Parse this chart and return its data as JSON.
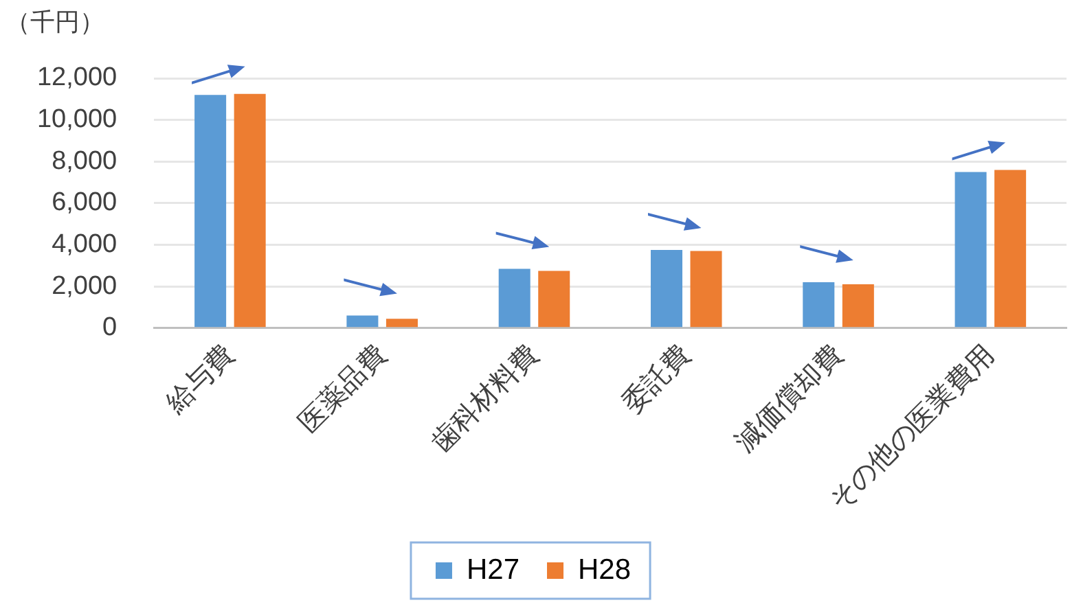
{
  "chart_data": {
    "type": "bar",
    "ylabel": "（千円）",
    "categories": [
      "給与費",
      "医薬品費",
      "歯科材料費",
      "委託費",
      "減価償却費",
      "その他の医業費用"
    ],
    "series": [
      {
        "name": "H27",
        "color": "#5b9bd5",
        "values": [
          11200,
          600,
          2850,
          3750,
          2200,
          7500
        ]
      },
      {
        "name": "H28",
        "color": "#ed7d31",
        "values": [
          11250,
          450,
          2750,
          3700,
          2100,
          7600
        ]
      }
    ],
    "ylim": [
      0,
      12000
    ],
    "yticks": [
      0,
      {
        "value": 2000,
        "label": "2,000"
      },
      {
        "value": 4000,
        "label": "4,000"
      },
      {
        "value": 6000,
        "label": "6,000"
      },
      {
        "value": 8000,
        "label": "8,000"
      },
      {
        "value": 10000,
        "label": "10,000"
      },
      {
        "value": 12000,
        "label": "12,000"
      }
    ],
    "grid": "y",
    "legend": "bottom"
  }
}
